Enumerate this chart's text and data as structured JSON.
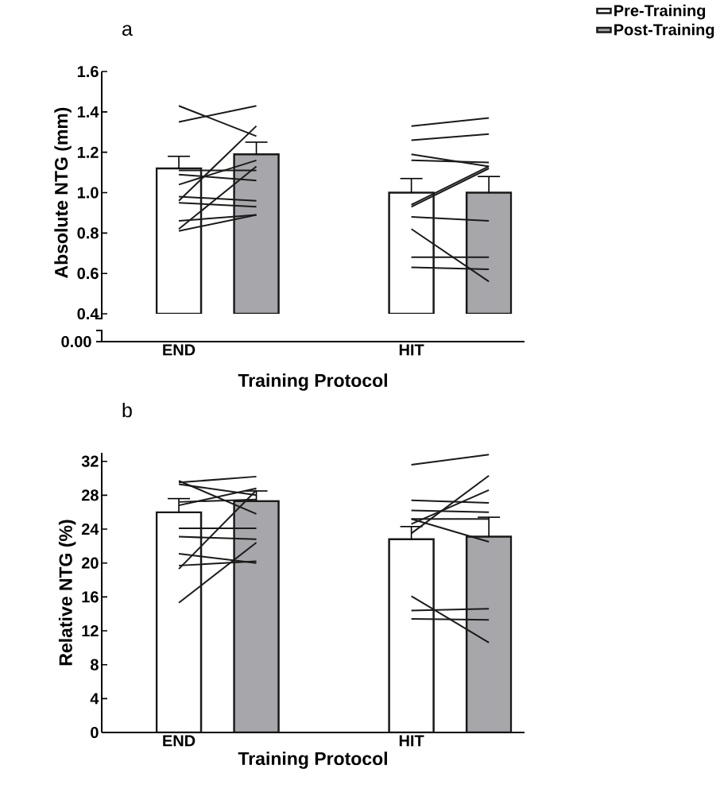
{
  "chart_data": [
    {
      "type": "bar",
      "title": "a",
      "xlabel": "Training Protocol",
      "ylabel": "Absolute NTG (mm)",
      "legend": "top right",
      "annotations": [
        "0.00"
      ],
      "categories": [
        "END",
        null,
        null,
        "HIT",
        null
      ],
      "ylim": [
        0.4,
        1.6
      ],
      "yticks": [
        {
          "value": 0.4,
          "label": "0.4"
        },
        {
          "value": 0.6,
          "label": "0.6"
        },
        {
          "value": 0.8,
          "label": "0.8"
        },
        {
          "value": 1.0,
          "label": "1.0"
        },
        {
          "value": 1.2,
          "label": "1.2"
        },
        {
          "value": 1.4,
          "label": "1.4"
        },
        {
          "value": 1.6,
          "label": "1.6"
        }
      ],
      "series": [
        {
          "name": "Pre-Training",
          "color": "#ffffff",
          "values": [
            1.12,
            null,
            null,
            1.0,
            null
          ],
          "errors": [
            0.06,
            null,
            null,
            0.07,
            null
          ]
        },
        {
          "name": "Post-Training",
          "color": "#a7a6ab",
          "values": [
            null,
            1.19,
            null,
            null,
            1.0
          ],
          "errors": [
            null,
            0.06,
            null,
            null,
            0.08
          ]
        },
        {
          "type": "line",
          "color": "#1a1a1a",
          "values": [
            1.43,
            1.28,
            null,
            null,
            null
          ]
        },
        {
          "type": "line",
          "color": "#1a1a1a",
          "values": [
            1.35,
            1.43,
            null,
            null,
            null
          ]
        },
        {
          "type": "line",
          "color": "#1a1a1a",
          "values": [
            0.96,
            1.33,
            null,
            null,
            null
          ]
        },
        {
          "type": "line",
          "color": "#1a1a1a",
          "values": [
            0.82,
            1.13,
            null,
            null,
            null
          ]
        },
        {
          "type": "line",
          "color": "#1a1a1a",
          "values": [
            1.04,
            1.16,
            null,
            null,
            null
          ]
        },
        {
          "type": "line",
          "color": "#1a1a1a",
          "values": [
            1.11,
            1.11,
            null,
            null,
            null
          ]
        },
        {
          "type": "line",
          "color": "#1a1a1a",
          "values": [
            1.09,
            1.06,
            null,
            null,
            null
          ]
        },
        {
          "type": "line",
          "color": "#1a1a1a",
          "values": [
            0.98,
            0.96,
            null,
            null,
            null
          ]
        },
        {
          "type": "line",
          "color": "#1a1a1a",
          "values": [
            0.95,
            0.93,
            null,
            null,
            null
          ]
        },
        {
          "type": "line",
          "color": "#1a1a1a",
          "values": [
            0.86,
            0.89,
            null,
            null,
            null
          ]
        },
        {
          "type": "line",
          "color": "#1a1a1a",
          "values": [
            0.81,
            0.89,
            null,
            null,
            null
          ]
        },
        {
          "type": "line",
          "color": "#1a1a1a",
          "values": [
            null,
            null,
            null,
            1.33,
            1.37
          ]
        },
        {
          "type": "line",
          "color": "#1a1a1a",
          "values": [
            null,
            null,
            null,
            1.26,
            1.29
          ]
        },
        {
          "type": "line",
          "color": "#1a1a1a",
          "values": [
            null,
            null,
            null,
            1.19,
            1.13
          ]
        },
        {
          "type": "line",
          "color": "#1a1a1a",
          "values": [
            null,
            null,
            null,
            1.16,
            1.15
          ]
        },
        {
          "type": "line",
          "color": "#1a1a1a",
          "values": [
            null,
            null,
            null,
            0.94,
            1.13
          ]
        },
        {
          "type": "line",
          "color": "#1a1a1a",
          "values": [
            null,
            null,
            null,
            0.93,
            1.12
          ]
        },
        {
          "type": "line",
          "color": "#1a1a1a",
          "values": [
            null,
            null,
            null,
            0.88,
            0.86
          ]
        },
        {
          "type": "line",
          "color": "#1a1a1a",
          "values": [
            null,
            null,
            null,
            0.82,
            0.56
          ]
        },
        {
          "type": "line",
          "color": "#1a1a1a",
          "values": [
            null,
            null,
            null,
            0.68,
            0.68
          ]
        },
        {
          "type": "line",
          "color": "#1a1a1a",
          "values": [
            null,
            null,
            null,
            0.63,
            0.62
          ]
        }
      ]
    },
    {
      "type": "bar",
      "title": "b",
      "xlabel": "Training Protocol",
      "ylabel": "Relative NTG (%)",
      "categories": [
        "END",
        null,
        null,
        "HIT",
        null
      ],
      "ylim": [
        0,
        33
      ],
      "yticks": [
        0,
        4,
        8,
        12,
        16,
        20,
        24,
        28,
        32
      ],
      "series": [
        {
          "color": "#ffffff",
          "values": [
            26.0,
            null,
            null,
            22.8,
            null
          ],
          "errors": [
            1.6,
            null,
            null,
            1.5,
            null
          ]
        },
        {
          "color": "#a7a6ab",
          "values": [
            null,
            27.3,
            null,
            null,
            23.1
          ],
          "errors": [
            null,
            1.2,
            null,
            null,
            2.3
          ]
        },
        {
          "type": "line",
          "color": "#1a1a1a",
          "values": [
            29.5,
            30.2,
            null,
            null,
            null
          ]
        },
        {
          "type": "line",
          "color": "#1a1a1a",
          "values": [
            29.7,
            25.8,
            null,
            null,
            null
          ]
        },
        {
          "type": "line",
          "color": "#1a1a1a",
          "values": [
            29.3,
            28.0,
            null,
            null,
            null
          ]
        },
        {
          "type": "line",
          "color": "#1a1a1a",
          "values": [
            26.8,
            28.8,
            null,
            null,
            null
          ]
        },
        {
          "type": "line",
          "color": "#1a1a1a",
          "values": [
            27.2,
            27.5,
            null,
            null,
            null
          ]
        },
        {
          "type": "line",
          "color": "#1a1a1a",
          "values": [
            19.3,
            28.6,
            null,
            null,
            null
          ]
        },
        {
          "type": "line",
          "color": "#1a1a1a",
          "values": [
            15.3,
            22.4,
            null,
            null,
            null
          ]
        },
        {
          "type": "line",
          "color": "#1a1a1a",
          "values": [
            24.1,
            24.1,
            null,
            null,
            null
          ]
        },
        {
          "type": "line",
          "color": "#1a1a1a",
          "values": [
            23.1,
            22.8,
            null,
            null,
            null
          ]
        },
        {
          "type": "line",
          "color": "#1a1a1a",
          "values": [
            21.1,
            20.0,
            null,
            null,
            null
          ]
        },
        {
          "type": "line",
          "color": "#1a1a1a",
          "values": [
            19.7,
            20.2,
            null,
            null,
            null
          ]
        },
        {
          "type": "line",
          "color": "#1a1a1a",
          "values": [
            null,
            null,
            null,
            31.6,
            32.8
          ]
        },
        {
          "type": "line",
          "color": "#1a1a1a",
          "values": [
            null,
            null,
            null,
            23.5,
            30.3
          ]
        },
        {
          "type": "line",
          "color": "#1a1a1a",
          "values": [
            null,
            null,
            null,
            24.6,
            28.6
          ]
        },
        {
          "type": "line",
          "color": "#1a1a1a",
          "values": [
            null,
            null,
            null,
            27.4,
            27.1
          ]
        },
        {
          "type": "line",
          "color": "#1a1a1a",
          "values": [
            null,
            null,
            null,
            26.2,
            26.0
          ]
        },
        {
          "type": "line",
          "color": "#1a1a1a",
          "values": [
            null,
            null,
            null,
            25.2,
            25.2
          ]
        },
        {
          "type": "line",
          "color": "#1a1a1a",
          "values": [
            null,
            null,
            null,
            25.2,
            22.5
          ]
        },
        {
          "type": "line",
          "color": "#1a1a1a",
          "values": [
            null,
            null,
            null,
            16.1,
            10.6
          ]
        },
        {
          "type": "line",
          "color": "#1a1a1a",
          "values": [
            null,
            null,
            null,
            14.4,
            14.6
          ]
        },
        {
          "type": "line",
          "color": "#1a1a1a",
          "values": [
            null,
            null,
            null,
            13.4,
            13.3
          ]
        }
      ]
    }
  ]
}
